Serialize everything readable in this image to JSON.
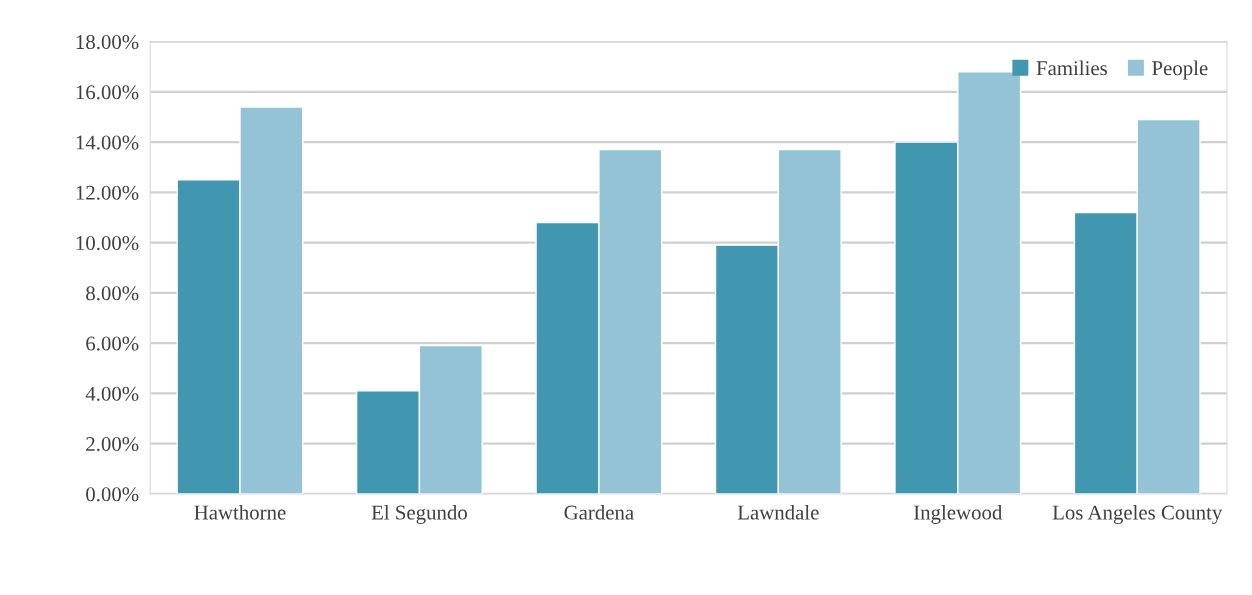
{
  "chart_data": {
    "type": "bar",
    "categories": [
      "Hawthorne",
      "El Segundo",
      "Gardena",
      "Lawndale",
      "Inglewood",
      "Los Angeles County"
    ],
    "series": [
      {
        "name": "Families",
        "color": "#4196b0",
        "values": [
          12.5,
          4.1,
          10.8,
          9.9,
          14.0,
          11.2
        ]
      },
      {
        "name": "People",
        "color": "#93c3d5",
        "values": [
          15.4,
          5.9,
          13.7,
          13.7,
          16.8,
          14.9
        ]
      }
    ],
    "ylim": [
      0,
      18
    ],
    "yticks": [
      {
        "value": 0,
        "label": "0.00%"
      },
      {
        "value": 2,
        "label": "2.00%"
      },
      {
        "value": 4,
        "label": "4.00%"
      },
      {
        "value": 6,
        "label": "6.00%"
      },
      {
        "value": 8,
        "label": "8.00%"
      },
      {
        "value": 10,
        "label": "10.00%"
      },
      {
        "value": 12,
        "label": "12.00%"
      },
      {
        "value": 14,
        "label": "14.00%"
      },
      {
        "value": 16,
        "label": "16.00%"
      },
      {
        "value": 18,
        "label": "18.00%"
      }
    ],
    "grid": "y",
    "legend": "top right"
  }
}
